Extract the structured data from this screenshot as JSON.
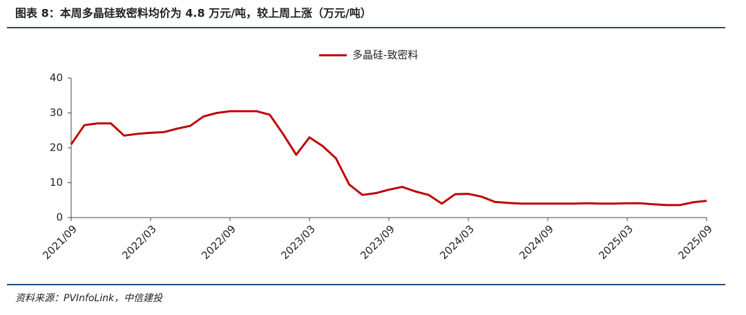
{
  "chart_data": {
    "type": "line",
    "title": "图表 8：本周多晶硅致密料均价为 4.8 万元/吨，较上周上涨（万元/吨）",
    "source": "资料来源：PVInfoLink，中信建投",
    "categories": [
      "2021/09",
      null,
      null,
      null,
      null,
      null,
      "2022/03",
      null,
      null,
      null,
      null,
      null,
      "2022/09",
      null,
      null,
      null,
      null,
      null,
      "2023/03",
      null,
      null,
      null,
      null,
      null,
      "2023/09",
      null,
      null,
      null,
      null,
      null,
      "2024/03",
      null,
      null,
      null,
      null,
      null,
      "2024/09",
      null,
      null,
      null,
      null,
      null,
      "2025/03",
      null,
      null,
      null,
      null,
      null,
      "2025/09"
    ],
    "series": [
      {
        "name": "多晶硅-致密料",
        "color": "#c00000",
        "values": [
          21,
          26.5,
          27,
          27,
          23.5,
          24,
          24.3,
          24.5,
          25.5,
          26.3,
          29,
          30,
          30.5,
          30.5,
          30.5,
          29.5,
          24,
          18,
          23,
          20.5,
          17,
          9.5,
          6.5,
          7,
          8,
          8.8,
          7.5,
          6.5,
          4,
          6.7,
          6.8,
          6,
          4.5,
          4.2,
          4,
          4,
          4,
          4,
          4,
          4.1,
          4,
          4,
          4.1,
          4.1,
          3.8,
          3.6,
          3.6,
          4.4,
          4.8
        ]
      }
    ],
    "ylim": [
      0,
      40
    ],
    "yticks": [
      0,
      10,
      20,
      30,
      40
    ],
    "legend": "top"
  }
}
